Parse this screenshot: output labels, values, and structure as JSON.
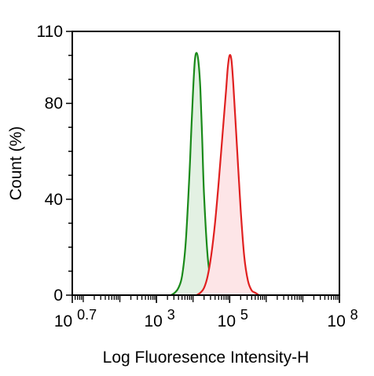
{
  "chart_data": {
    "type": "area",
    "xlabel": "Log Fluoresence Intensity-H",
    "ylabel": "Count  (%)",
    "x_scale": "log",
    "xlim_log10": [
      0.7,
      8
    ],
    "ylim": [
      0,
      110
    ],
    "x_ticks": [
      {
        "base": "10",
        "exp": "0.7",
        "log10": 0.7
      },
      {
        "base": "10",
        "exp": "3",
        "log10": 3
      },
      {
        "base": "10",
        "exp": "5",
        "log10": 5
      },
      {
        "base": "10",
        "exp": "8",
        "log10": 8
      }
    ],
    "y_ticks": [
      {
        "label": "0",
        "value": 0
      },
      {
        "label": "40",
        "value": 40
      },
      {
        "label": "80",
        "value": 80
      },
      {
        "label": "110",
        "value": 110
      }
    ],
    "grid": false,
    "series": [
      {
        "color": "#1a8a1a",
        "fill": "#e3f1e3",
        "x_log10": [
          3.4,
          3.5,
          3.6,
          3.7,
          3.8,
          3.9,
          3.95,
          4.0,
          4.05,
          4.1,
          4.15,
          4.2,
          4.25,
          4.3,
          4.4,
          4.5,
          4.6,
          4.7
        ],
        "y": [
          0,
          1,
          3,
          8,
          22,
          50,
          68,
          85,
          98,
          101,
          97,
          86,
          65,
          42,
          16,
          5,
          1,
          0
        ]
      },
      {
        "color": "#e02020",
        "fill": "#fde5e7",
        "x_log10": [
          4.1,
          4.2,
          4.3,
          4.4,
          4.5,
          4.6,
          4.7,
          4.8,
          4.9,
          4.95,
          5.0,
          5.05,
          5.1,
          5.2,
          5.3,
          5.4,
          5.5,
          5.6,
          5.7,
          5.8
        ],
        "y": [
          0,
          1,
          3,
          8,
          17,
          30,
          47,
          66,
          85,
          95,
          100,
          98,
          88,
          62,
          36,
          16,
          6,
          2,
          1,
          0
        ]
      }
    ]
  }
}
